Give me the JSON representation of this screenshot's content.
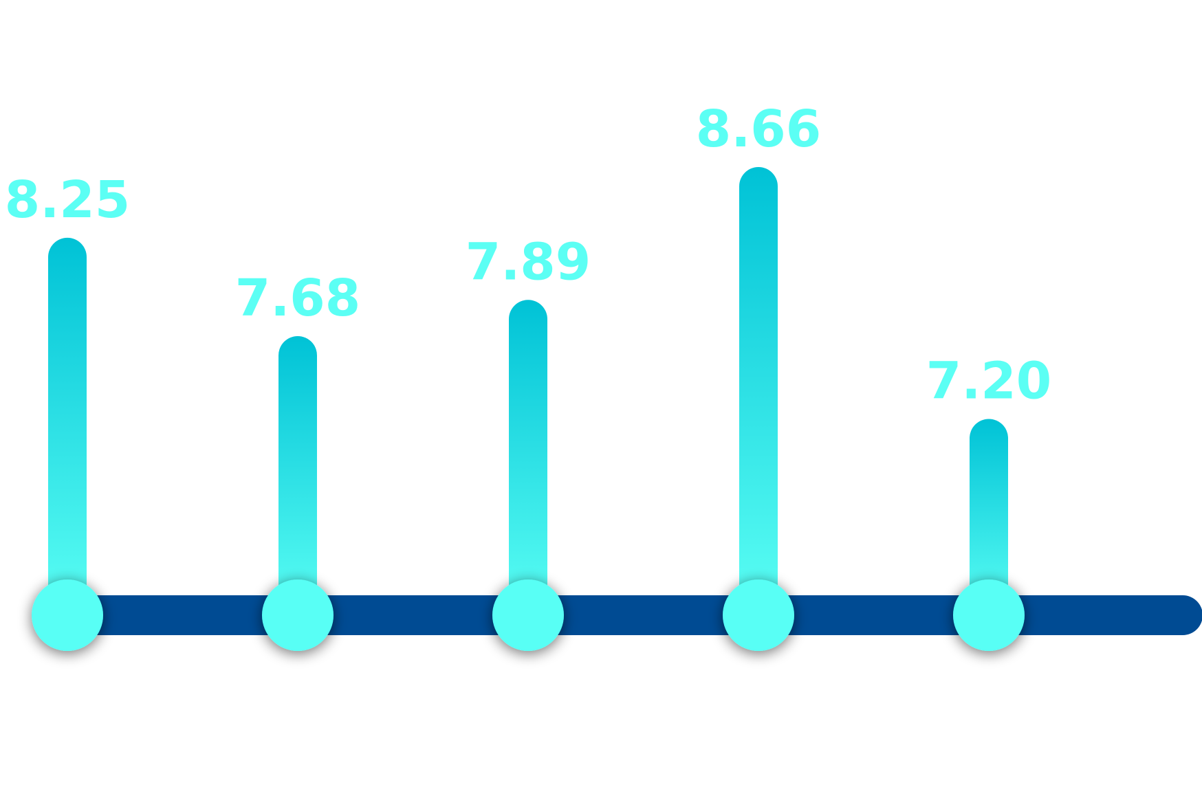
{
  "chart_data": {
    "type": "lollipop",
    "categories": [
      "",
      "",
      "",
      "",
      ""
    ],
    "values": [
      8.25,
      7.68,
      7.89,
      8.66,
      7.2
    ],
    "labels": [
      "8.25",
      "7.68",
      "7.89",
      "8.66",
      "7.20"
    ],
    "title": "",
    "xlabel": "",
    "ylabel": "",
    "grid": false,
    "legend": "none",
    "colors": {
      "stem_top": "#00c2d6",
      "stem_bottom": "#5bfff4",
      "marker": "#59fff5",
      "baseline": "#004b93",
      "label": "#5bfff4",
      "background": "#ffffff"
    }
  }
}
